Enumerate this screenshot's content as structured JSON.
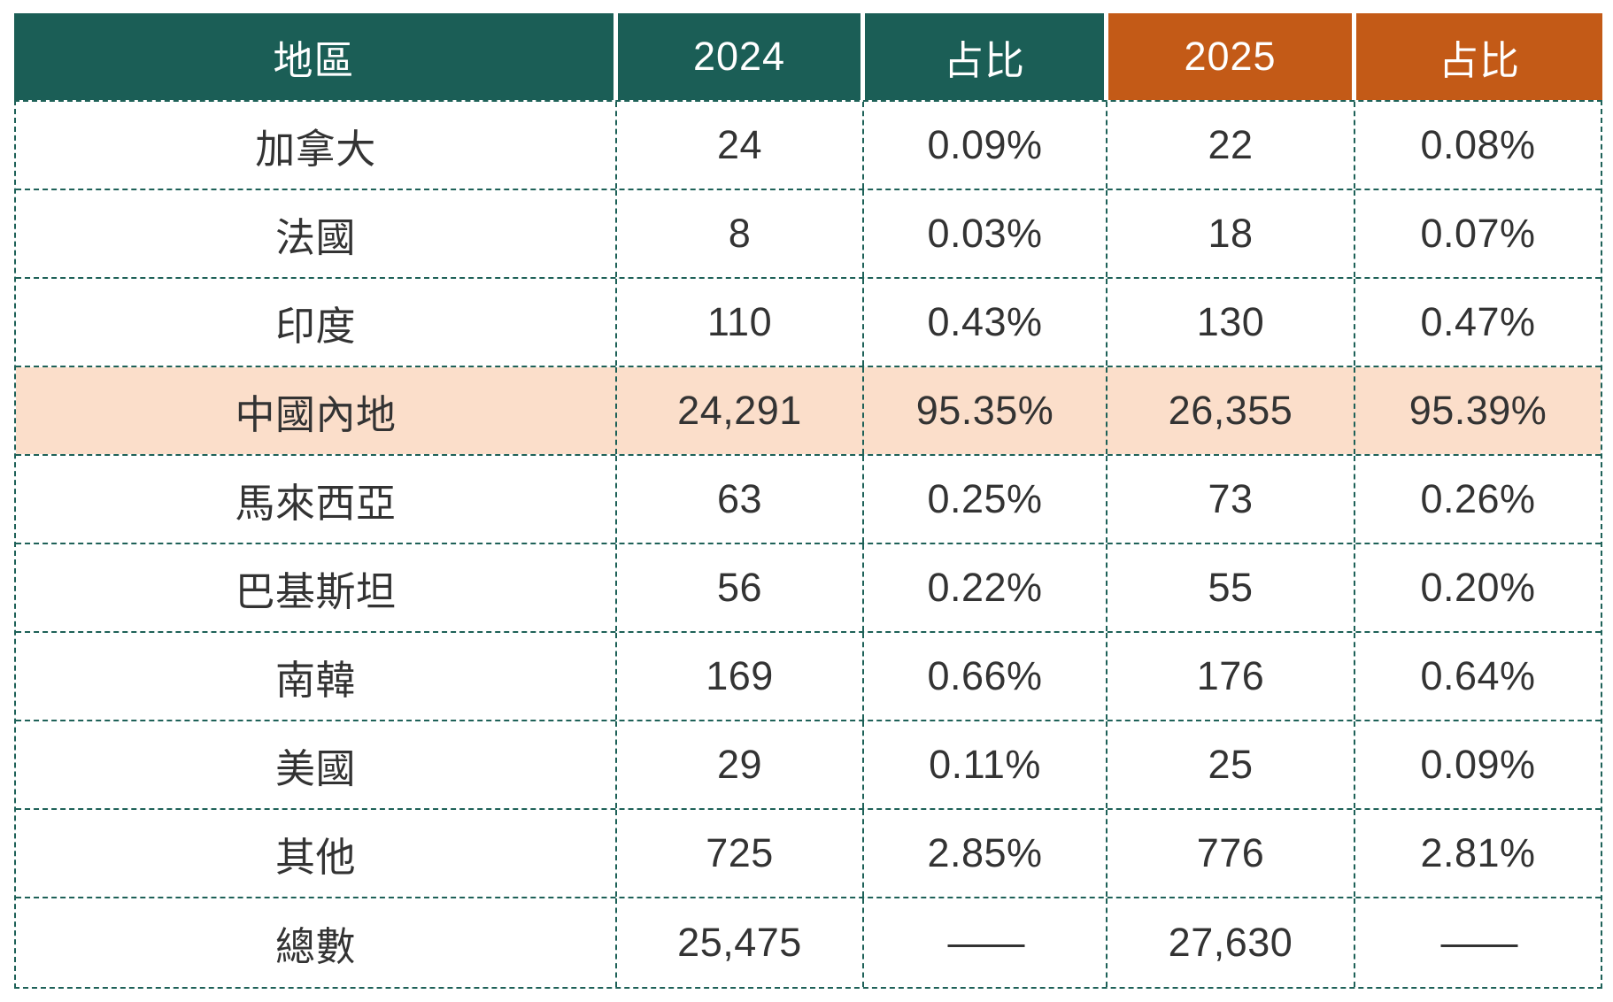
{
  "colors": {
    "header_teal": "#1B5E56",
    "header_orange": "#C35A17",
    "highlight_row_bg": "#FBDECA",
    "border_dash": "#1E6158",
    "header_text": "#FFFFFF",
    "body_text": "#333333",
    "page_bg": "#FFFFFF"
  },
  "chart_data": {
    "type": "table",
    "columns": [
      {
        "label": "地區",
        "theme": "teal"
      },
      {
        "label": "2024",
        "theme": "teal"
      },
      {
        "label": "占比",
        "theme": "teal"
      },
      {
        "label": "2025",
        "theme": "orange"
      },
      {
        "label": "占比",
        "theme": "orange"
      }
    ],
    "rows": [
      {
        "cells": [
          "加拿大",
          "24",
          "0.09%",
          "22",
          "0.08%"
        ],
        "highlight": false
      },
      {
        "cells": [
          "法國",
          "8",
          "0.03%",
          "18",
          "0.07%"
        ],
        "highlight": false
      },
      {
        "cells": [
          "印度",
          "110",
          "0.43%",
          "130",
          "0.47%"
        ],
        "highlight": false
      },
      {
        "cells": [
          "中國內地",
          "24,291",
          "95.35%",
          "26,355",
          "95.39%"
        ],
        "highlight": true
      },
      {
        "cells": [
          "馬來西亞",
          "63",
          "0.25%",
          "73",
          "0.26%"
        ],
        "highlight": false
      },
      {
        "cells": [
          "巴基斯坦",
          "56",
          "0.22%",
          "55",
          "0.20%"
        ],
        "highlight": false
      },
      {
        "cells": [
          "南韓",
          "169",
          "0.66%",
          "176",
          "0.64%"
        ],
        "highlight": false
      },
      {
        "cells": [
          "美國",
          "29",
          "0.11%",
          "25",
          "0.09%"
        ],
        "highlight": false
      },
      {
        "cells": [
          "其他",
          "725",
          "2.85%",
          "776",
          "2.81%"
        ],
        "highlight": false
      },
      {
        "cells": [
          "總數",
          "25,475",
          "——",
          "27,630",
          "——"
        ],
        "highlight": false
      }
    ],
    "notes": {
      "highlighted_region": "中國內地",
      "totals_2024": "25,475",
      "totals_2025": "27,630"
    }
  }
}
